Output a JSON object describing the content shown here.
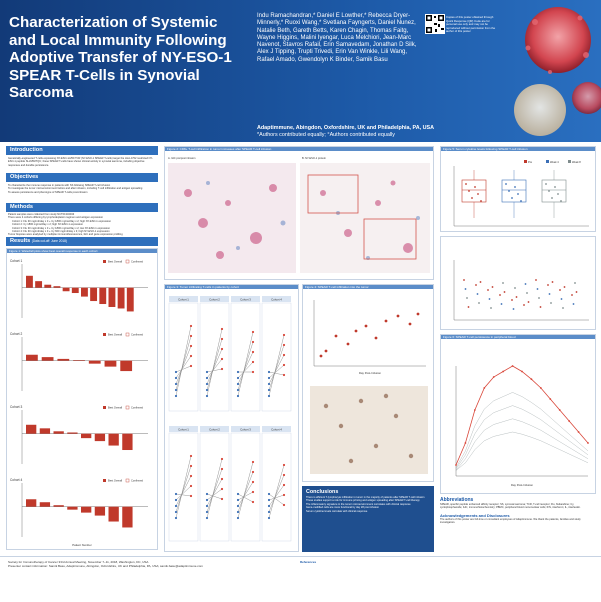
{
  "header": {
    "title": "Characterization of Systemic and Local Immunity Following Adoptive Transfer of NY-ESO-1 SPEAR T-Cells in Synovial Sarcoma",
    "authors": "Indu Ramachandran,* Daniel E Lowther,* Rebecca Dryer-Minnerly,* Ruoxi Wang,* Svetlana Fayngerts, Daniel Nunez, Natalie Beth, Gareth Betts, Karen Chagin, Thomas Faitg, Wayne Higgins, Malini Iyengar, Luca Melchiori, Jean-Marc Navenot, Stavros Rafail, Erin Samavedam, Jonathan D Silk, Alex J Tipping, Trupti Trivedi, Erin Van Winkle, Lili Wang, Rafael Amado, Gwendolyn K Binder, Samik Basu",
    "affiliation": "Adaptimmune, Abingdon, Oxfordshire, UK and Philadelphia, PA, USA",
    "affiliation2": "*Authors contributed equally; °Authors contributed equally",
    "qr_text": "Copies of this poster obtained through Quick Response (QR) Code are for personal use only and may not be reproduced without permission from the author of this poster"
  },
  "colors": {
    "header_blue": "#1b4a8c",
    "section_blue": "#2e6fbc",
    "bar_red": "#c0392b",
    "line_red": "#d9473a"
  },
  "sections": {
    "introduction": {
      "title": "Introduction",
      "text": "Genetically-engineered T cells expressing NY-ESO-1c259 TCR (NY-ESO-1 SPEAR T-cells) target the HLA-A*02 restricted NY-ESO-1 peptide SLLMWITQC; these SPEAR T-cells have shown clinical activity in synovial sarcoma, including objective responses and durable persistence."
    },
    "objectives": {
      "title": "Objectives",
      "items": [
        "To characterize the immune response in patients with SS following SPEAR T-cell infusion",
        "To investigate the tumor microenvironment before and after infusion, including T-cell infiltration and antigen spreading",
        "To assess persistence and phenotype of SPEAR T-cells post-infusion"
      ]
    },
    "methods": {
      "title": "Methods",
      "items": [
        "Patient samples were collected from study NCT01343043",
        "There were 4 cohorts differing by lymphodepletion regimen and antigen expression",
        "Cohort 1: Flu 30 mg/m2/day x 3 + Cy 1800 mg/m2/day x 2; high NY-ESO-1 expression",
        "Cohort 2: Cy 1800 mg/m2/day x 2; high NY-ESO-1 expression",
        "Cohort 3: Flu 30 mg/m2/day x 3 + Cy 1800 mg/m2/day x 2; low NY-ESO-1 expression",
        "Cohort 4: Flu 30 mg/m2/day x 3 + Cy 600 mg/m2/day x 3; high NY-ESO-1 expression",
        "Tumor biopsies were analyzed by multiplex immunofluorescence, IHC and gene expression profiling",
        "Serum cytokines and SPEAR T-cell persistence were measured in peripheral blood"
      ]
    },
    "results": {
      "title": "Results",
      "subtitle": "(Data cut-off: June 2018)"
    }
  },
  "panels": {
    "fig1": "Figure 1: Waterfall plots show best overall response in each cohort",
    "fig2": "Figure 2: CD8+ T-cell infiltration in tumor increases after SPEAR T-cell infusion",
    "fig2a": "A. IHC pre/post infusion",
    "fig2b": "B. NY-ESO-1 protein",
    "fig3": "Figure 3: Tumor infiltrating T-cells in patients by cohort",
    "fig3_cohorts": [
      "Cohort 1",
      "Cohort 2",
      "Cohort 3",
      "Cohort 4"
    ],
    "fig4": "Figure 4: SPEAR T-cell infiltration into the tumor",
    "fig5": "Figure 5: Serum cytokine levels following SPEAR T-cell infusion",
    "fig5_legend": [
      "Pre",
      "Week 4",
      "Week 8"
    ],
    "fig6": "Figure 6: SPEAR T-cell persistence in peripheral blood",
    "fig4_axis": "Day Post-Infusion",
    "fig1_xlabel": "Patient Number",
    "fig1_ylabel": "% Change",
    "fig1_labels": [
      "Cohort 1",
      "Cohort 2",
      "Cohort 3",
      "Cohort 4"
    ],
    "fig1_legend": [
      "Best Overall",
      "Confirmed"
    ]
  },
  "chart_data": [
    {
      "type": "bar",
      "title": "Cohort 1 waterfall",
      "ylabel": "% Change",
      "values": [
        40,
        22,
        10,
        5,
        -12,
        -18,
        -30,
        -45,
        -55,
        -65,
        -70,
        -80
      ]
    },
    {
      "type": "bar",
      "title": "Cohort 2 waterfall",
      "ylabel": "% Change",
      "values": [
        20,
        12,
        6,
        2,
        -10,
        -20,
        -35
      ]
    },
    {
      "type": "bar",
      "title": "Cohort 3 waterfall",
      "ylabel": "% Change",
      "values": [
        30,
        18,
        8,
        4,
        -15,
        -25,
        -40,
        -55
      ]
    },
    {
      "type": "bar",
      "title": "Cohort 4 waterfall",
      "ylabel": "% Change",
      "values": [
        25,
        15,
        5,
        -10,
        -20,
        -30,
        -50,
        -70
      ]
    },
    {
      "type": "line",
      "title": "SPEAR T-cell persistence",
      "xlabel": "Day Post-Infusion",
      "values": [
        10,
        30,
        60,
        80,
        90,
        95,
        100,
        95,
        88,
        80,
        70,
        60,
        50,
        40,
        30
      ]
    }
  ],
  "conclusions": {
    "title": "Conclusions",
    "items": [
      "There is efficient T-lymphocyte infiltration in tumor in the majority of patients after SPEAR T-cell infusion",
      "These studies support a role for immune priming and antigen spreading after SPEAR T-cell therapy",
      "The inflammatory signature in the tumor microenvironment correlates with clinical response",
      "Gene-modified cells are more functional by day 28 post infusion",
      "Serum cytokine levels correlate with clinical response"
    ]
  },
  "abbreviations": {
    "title": "Abbreviations",
    "text": "SPEAR, specific peptide enhanced affinity receptor; SS, synovial sarcoma; TCR, T-cell receptor; Flu, fludarabine; Cy, cyclophosphamide; IHC, immunohistochemistry; PBMC, peripheral blood mononuclear cells; IFN, interferon; IL, interleukin."
  },
  "acknowledgements": {
    "title": "Acknowledgements and Disclosures",
    "text": "The authors of this poster are full-time or consultant employees of Adaptimmune. We thank the patients, families and study investigators."
  },
  "footer": {
    "meeting": "Society for Immunotherapy of Cancer 33rd Annual Meeting, November 7–11, 2018, Washington, DC, USA",
    "contact": "Presenter contact information: Samik Basu, Adaptimmune, Abingdon, Oxfordshire, UK and Philadelphia, PA, USA; samik.basu@adaptimmune.com",
    "references_title": "References"
  }
}
